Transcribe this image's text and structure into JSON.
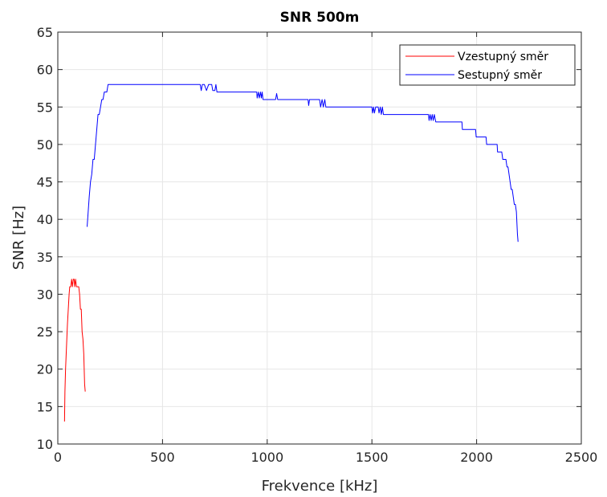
{
  "chart_data": {
    "type": "line",
    "title": "SNR 500m",
    "xlabel": "Frekvence [kHz]",
    "ylabel": "SNR [Hz]",
    "xlim": [
      0,
      2500
    ],
    "ylim": [
      10,
      65
    ],
    "xticks": [
      0,
      500,
      1000,
      1500,
      2000,
      2500
    ],
    "yticks": [
      10,
      15,
      20,
      25,
      30,
      35,
      40,
      45,
      50,
      55,
      60,
      65
    ],
    "xtick_labels": [
      "0",
      "500",
      "1000",
      "1500",
      "2000",
      "2500"
    ],
    "ytick_labels": [
      "10",
      "15",
      "20",
      "25",
      "30",
      "35",
      "40",
      "45",
      "50",
      "55",
      "60",
      "65"
    ],
    "grid": true,
    "legend_position": "top-right",
    "series": [
      {
        "name": "Vzestupný směr",
        "color": "#ff0000",
        "points": [
          [
            32,
            13
          ],
          [
            34,
            17
          ],
          [
            37,
            20
          ],
          [
            40,
            22
          ],
          [
            43,
            24
          ],
          [
            46,
            26
          ],
          [
            50,
            28
          ],
          [
            54,
            30
          ],
          [
            57,
            31
          ],
          [
            62,
            31
          ],
          [
            66,
            32
          ],
          [
            70,
            31
          ],
          [
            74,
            32
          ],
          [
            78,
            32
          ],
          [
            81,
            31
          ],
          [
            85,
            32
          ],
          [
            89,
            31
          ],
          [
            95,
            31
          ],
          [
            100,
            31
          ],
          [
            104,
            30
          ],
          [
            108,
            28
          ],
          [
            112,
            28
          ],
          [
            116,
            25
          ],
          [
            120,
            24
          ],
          [
            124,
            22
          ],
          [
            128,
            18
          ],
          [
            131,
            17
          ]
        ]
      },
      {
        "name": "Sestupný směr",
        "color": "#0000ff",
        "points": [
          [
            140,
            39
          ],
          [
            145,
            41
          ],
          [
            150,
            43
          ],
          [
            156,
            45
          ],
          [
            162,
            46
          ],
          [
            168,
            48
          ],
          [
            174,
            48
          ],
          [
            180,
            50
          ],
          [
            186,
            52
          ],
          [
            192,
            54
          ],
          [
            198,
            54
          ],
          [
            204,
            55
          ],
          [
            210,
            56
          ],
          [
            216,
            56
          ],
          [
            222,
            57
          ],
          [
            228,
            57
          ],
          [
            234,
            57
          ],
          [
            240,
            58
          ],
          [
            250,
            58
          ],
          [
            300,
            58
          ],
          [
            400,
            58
          ],
          [
            500,
            58
          ],
          [
            600,
            58
          ],
          [
            680,
            58
          ],
          [
            685,
            57.2
          ],
          [
            690,
            58
          ],
          [
            700,
            58
          ],
          [
            710,
            57.2
          ],
          [
            720,
            58
          ],
          [
            735,
            58
          ],
          [
            740,
            57.2
          ],
          [
            750,
            57.2
          ],
          [
            755,
            58
          ],
          [
            760,
            57
          ],
          [
            800,
            57
          ],
          [
            900,
            57
          ],
          [
            950,
            57
          ],
          [
            952,
            56.2
          ],
          [
            958,
            57
          ],
          [
            962,
            56.2
          ],
          [
            968,
            57
          ],
          [
            972,
            56.2
          ],
          [
            976,
            57
          ],
          [
            980,
            56
          ],
          [
            1000,
            56
          ],
          [
            1040,
            56
          ],
          [
            1045,
            56.8
          ],
          [
            1050,
            56
          ],
          [
            1100,
            56
          ],
          [
            1150,
            56
          ],
          [
            1195,
            56
          ],
          [
            1198,
            55.2
          ],
          [
            1202,
            56
          ],
          [
            1250,
            56
          ],
          [
            1255,
            55
          ],
          [
            1262,
            56
          ],
          [
            1268,
            55
          ],
          [
            1275,
            56
          ],
          [
            1280,
            55
          ],
          [
            1300,
            55
          ],
          [
            1400,
            55
          ],
          [
            1500,
            55
          ],
          [
            1503,
            54.2
          ],
          [
            1508,
            55
          ],
          [
            1512,
            54.2
          ],
          [
            1518,
            55
          ],
          [
            1530,
            55
          ],
          [
            1534,
            54.2
          ],
          [
            1540,
            55
          ],
          [
            1545,
            54
          ],
          [
            1550,
            55
          ],
          [
            1555,
            54
          ],
          [
            1600,
            54
          ],
          [
            1700,
            54
          ],
          [
            1770,
            54
          ],
          [
            1773,
            53.2
          ],
          [
            1778,
            54
          ],
          [
            1783,
            53.2
          ],
          [
            1788,
            54
          ],
          [
            1793,
            53.2
          ],
          [
            1798,
            54
          ],
          [
            1805,
            53
          ],
          [
            1850,
            53
          ],
          [
            1900,
            53
          ],
          [
            1930,
            53
          ],
          [
            1932,
            52
          ],
          [
            1980,
            52
          ],
          [
            1995,
            52
          ],
          [
            1998,
            51
          ],
          [
            2030,
            51
          ],
          [
            2045,
            51
          ],
          [
            2048,
            50
          ],
          [
            2080,
            50
          ],
          [
            2098,
            50
          ],
          [
            2100,
            49
          ],
          [
            2120,
            49
          ],
          [
            2125,
            48
          ],
          [
            2130,
            48
          ],
          [
            2140,
            48
          ],
          [
            2145,
            47
          ],
          [
            2150,
            47
          ],
          [
            2155,
            46
          ],
          [
            2160,
            45
          ],
          [
            2165,
            44
          ],
          [
            2170,
            44
          ],
          [
            2175,
            43
          ],
          [
            2180,
            42
          ],
          [
            2185,
            42
          ],
          [
            2190,
            41
          ],
          [
            2195,
            38
          ],
          [
            2198,
            37
          ]
        ]
      }
    ]
  }
}
